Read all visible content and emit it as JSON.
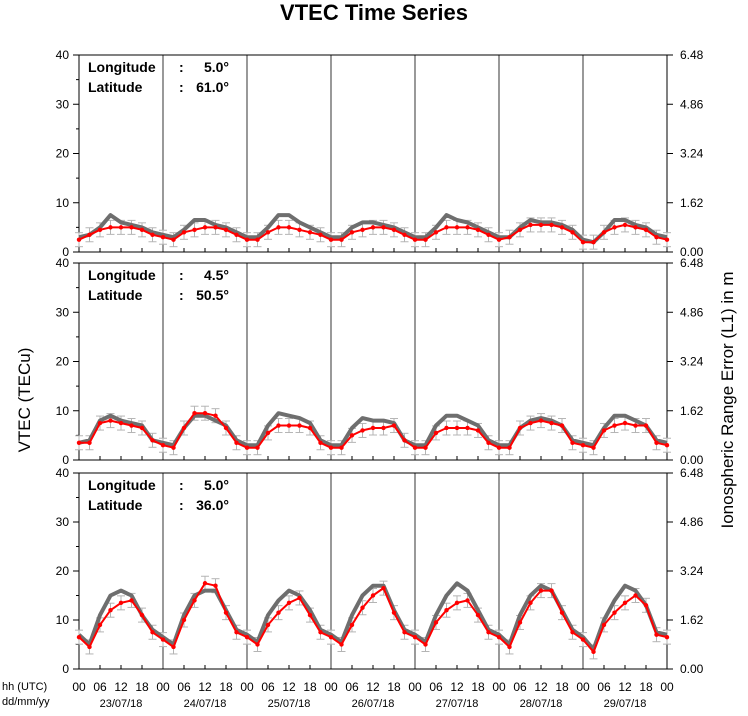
{
  "chart_data": {
    "type": "line",
    "title": "VTEC Time Series",
    "ylabel_left": "VTEC (TECu)",
    "ylabel_right": "Ionospheric Range Error (L1) in m",
    "xlabel_row1": "hh (UTC)",
    "xlabel_row2": "dd/mm/yy",
    "hour_ticks": [
      "00",
      "06",
      "12",
      "18"
    ],
    "final_hour_tick": "00",
    "dates": [
      "23/07/18",
      "24/07/18",
      "25/07/18",
      "26/07/18",
      "27/07/18",
      "28/07/18",
      "29/07/18"
    ],
    "ylim": [
      0,
      40
    ],
    "yticks_left": [
      "0",
      "10",
      "20",
      "30",
      "40"
    ],
    "yticks_right": [
      "0.00",
      "1.62",
      "3.24",
      "4.86",
      "6.48"
    ],
    "series_colors": {
      "measured": "#ff0000",
      "reference": "#6e6e6e",
      "error_bars": "#b4b4b4"
    },
    "panels": [
      {
        "lon_label": "Longitude",
        "lon_value": "5.0°",
        "lat_label": "Latitude",
        "lat_value": "61.0°",
        "hours": [
          0,
          3,
          6,
          9,
          12,
          15,
          18,
          21
        ],
        "days": [
          {
            "reference": [
              3,
              3.5,
              5,
              7.5,
              6,
              5.5,
              5,
              4
            ],
            "measured": [
              2.5,
              3.5,
              4.5,
              5,
              5,
              5,
              4.5,
              3.5
            ]
          },
          {
            "reference": [
              3.5,
              3,
              4.5,
              6.5,
              6.5,
              5.5,
              5,
              4
            ],
            "measured": [
              3,
              2.5,
              4,
              4.5,
              5,
              5,
              4.5,
              3.5
            ]
          },
          {
            "reference": [
              3,
              3,
              5,
              7.5,
              7.5,
              6,
              5,
              4
            ],
            "measured": [
              2.5,
              2.5,
              4,
              5,
              5,
              4.5,
              4,
              3.5
            ]
          },
          {
            "reference": [
              3,
              3,
              5,
              6,
              6,
              5.5,
              5,
              4
            ],
            "measured": [
              2.5,
              2.5,
              4,
              4.5,
              5,
              5,
              4.5,
              3.5
            ]
          },
          {
            "reference": [
              3,
              3,
              5,
              7.5,
              6.5,
              6,
              5,
              4
            ],
            "measured": [
              2.5,
              2.5,
              4,
              5,
              5,
              5,
              4.5,
              3.5
            ]
          },
          {
            "reference": [
              3,
              3,
              5,
              6.5,
              6,
              6,
              5.5,
              4.5
            ],
            "measured": [
              2.5,
              3,
              4.5,
              5.5,
              5.5,
              5.5,
              5,
              4
            ]
          },
          {
            "reference": [
              2.5,
              2,
              4,
              6.5,
              6.5,
              5.5,
              5,
              3.5
            ],
            "measured": [
              2,
              2,
              4,
              5,
              5.5,
              5,
              4.5,
              3
            ]
          }
        ]
      },
      {
        "lon_label": "Longitude",
        "lon_value": "4.5°",
        "lat_label": "Latitude",
        "lat_value": "50.5°",
        "hours": [
          0,
          3,
          6,
          9,
          12,
          15,
          18,
          21
        ],
        "days": [
          {
            "reference": [
              3.5,
              4,
              8,
              9,
              8,
              7.5,
              7,
              4
            ],
            "measured": [
              3.5,
              3.5,
              7.5,
              8,
              7.5,
              7,
              6.5,
              4
            ]
          },
          {
            "reference": [
              3.5,
              3,
              6.5,
              9,
              9,
              8,
              7,
              4
            ],
            "measured": [
              3,
              2.5,
              6.5,
              9.5,
              9.5,
              9,
              6.5,
              3.5
            ]
          },
          {
            "reference": [
              3,
              3,
              7,
              9.5,
              9,
              8.5,
              7.5,
              4
            ],
            "measured": [
              2.5,
              2.5,
              5.5,
              7,
              7,
              7,
              6.5,
              3.5
            ]
          },
          {
            "reference": [
              3,
              3,
              6.5,
              8.5,
              8,
              8,
              7.5,
              4
            ],
            "measured": [
              2.5,
              2.5,
              5,
              6,
              6.5,
              6.5,
              7,
              4
            ]
          },
          {
            "reference": [
              3,
              3,
              7,
              9,
              9,
              8,
              7,
              4
            ],
            "measured": [
              2.5,
              2.5,
              5.5,
              6.5,
              6.5,
              6.5,
              6,
              3.5
            ]
          },
          {
            "reference": [
              3,
              3,
              6.5,
              8,
              8.5,
              8,
              7,
              4
            ],
            "measured": [
              2.5,
              2.5,
              6.5,
              7.5,
              8,
              7.5,
              7,
              3.5
            ]
          },
          {
            "reference": [
              3.5,
              3,
              6.5,
              9,
              9,
              8,
              7,
              4
            ],
            "measured": [
              3,
              2.5,
              6,
              7,
              7.5,
              7,
              7,
              3.5
            ]
          }
        ]
      },
      {
        "lon_label": "Longitude",
        "lon_value": "5.0°",
        "lat_label": "Latitude",
        "lat_value": "36.0°",
        "hours": [
          0,
          3,
          6,
          9,
          12,
          15,
          18,
          21
        ],
        "days": [
          {
            "reference": [
              7,
              5,
              11,
              15,
              16,
              15,
              11,
              8
            ],
            "measured": [
              6.5,
              4.5,
              9,
              12,
              13.5,
              14,
              11,
              7.5
            ]
          },
          {
            "reference": [
              6.5,
              5,
              11,
              15,
              16,
              16,
              12,
              8
            ],
            "measured": [
              6,
              4.5,
              10,
              14,
              17.5,
              17,
              11.5,
              7.5
            ]
          },
          {
            "reference": [
              7,
              5.5,
              11,
              14,
              16,
              15,
              12,
              8
            ],
            "measured": [
              6.5,
              5,
              9,
              11.5,
              13.5,
              14.5,
              11,
              7.5
            ]
          },
          {
            "reference": [
              7,
              5.5,
              11,
              15,
              17,
              17,
              12,
              8
            ],
            "measured": [
              6.5,
              5,
              9,
              12.5,
              15,
              16.5,
              11.5,
              7.5
            ]
          },
          {
            "reference": [
              7,
              5.5,
              11,
              15,
              17.5,
              16,
              12,
              8
            ],
            "measured": [
              6.5,
              5,
              9.5,
              12,
              13.5,
              14,
              11,
              7.5
            ]
          },
          {
            "reference": [
              7,
              5,
              11,
              15,
              17,
              16,
              12,
              8
            ],
            "measured": [
              6.5,
              4.5,
              9.5,
              13.5,
              16,
              16,
              11.5,
              7.5
            ]
          },
          {
            "reference": [
              6.5,
              4,
              10,
              14,
              17,
              16,
              13,
              7.5
            ],
            "measured": [
              6,
              3.5,
              9,
              11.5,
              13.5,
              15,
              13,
              7
            ]
          }
        ]
      }
    ]
  }
}
